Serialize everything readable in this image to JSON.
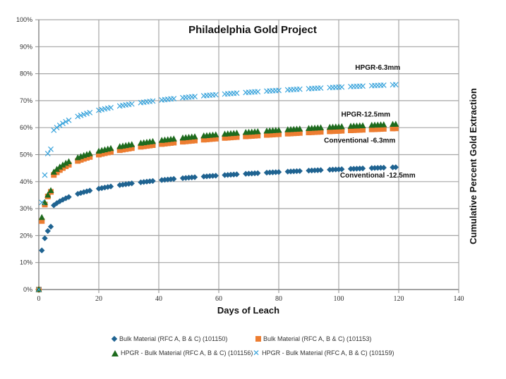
{
  "chart_data": {
    "type": "scatter",
    "title": "Philadelphia Gold Project",
    "xlabel": "Days of Leach",
    "ylabel": "Cumulative Percent Gold Extraction",
    "xlim": [
      0,
      140
    ],
    "ylim": [
      0,
      1
    ],
    "x_ticks": [
      0,
      20,
      40,
      60,
      80,
      100,
      120,
      140
    ],
    "y_ticks": [
      "0%",
      "10%",
      "20%",
      "30%",
      "40%",
      "50%",
      "60%",
      "70%",
      "80%",
      "90%",
      "100%"
    ],
    "grid": true,
    "legend_position": "bottom",
    "annotations": [
      {
        "text": "HPGR-6.3mm",
        "x": 113,
        "y": 0.815
      },
      {
        "text": "HPGR-12.5mm",
        "x": 109,
        "y": 0.641
      },
      {
        "text": "Conventional -6.3mm",
        "x": 107,
        "y": 0.544
      },
      {
        "text": "Conventional -12.5mm",
        "x": 113,
        "y": 0.415
      }
    ],
    "x": [
      0,
      1,
      2,
      3,
      4,
      5,
      6,
      7,
      8,
      9,
      10,
      13,
      14,
      15,
      16,
      17,
      20,
      21,
      22,
      23,
      24,
      27,
      28,
      29,
      30,
      31,
      34,
      35,
      36,
      37,
      38,
      41,
      42,
      43,
      44,
      45,
      48,
      49,
      50,
      51,
      52,
      55,
      56,
      57,
      58,
      59,
      62,
      63,
      64,
      65,
      66,
      69,
      70,
      71,
      72,
      73,
      76,
      77,
      78,
      79,
      80,
      83,
      84,
      85,
      86,
      87,
      90,
      91,
      92,
      93,
      94,
      97,
      98,
      99,
      100,
      101,
      104,
      105,
      106,
      107,
      108,
      111,
      112,
      113,
      114,
      115,
      118,
      119
    ],
    "series": [
      {
        "name": "Bulk Material (RFC A, B & C) (101150)",
        "marker": "diamond",
        "color": "#1f6391",
        "curve": {
          "a": 0.2405,
          "b": 0.0445,
          "early": [
            0,
            0.145,
            0.19,
            0.217,
            0.233
          ]
        }
      },
      {
        "name": "Bulk Material (RFC A, B & C) (101153)",
        "marker": "square",
        "color": "#ed7d31",
        "curve": {
          "a": 0.337,
          "b": 0.0545,
          "early": [
            0,
            0.254,
            0.315,
            0.345,
            0.362
          ]
        }
      },
      {
        "name": "HPGR - Bulk Material (RFC A, B & C) (101156)",
        "marker": "triangle",
        "color": "#1e6b1e",
        "curve": {
          "a": 0.345,
          "b": 0.056,
          "early": [
            0,
            0.267,
            0.322,
            0.35,
            0.367
          ]
        }
      },
      {
        "name": "HPGR - Bulk Material (RFC A, B & C) (101159)",
        "marker": "x",
        "color": "#3aa4dc",
        "curve": {
          "a": 0.505,
          "b": 0.0532,
          "early": [
            0,
            0.323,
            0.424,
            0.504,
            0.52
          ]
        }
      }
    ]
  }
}
